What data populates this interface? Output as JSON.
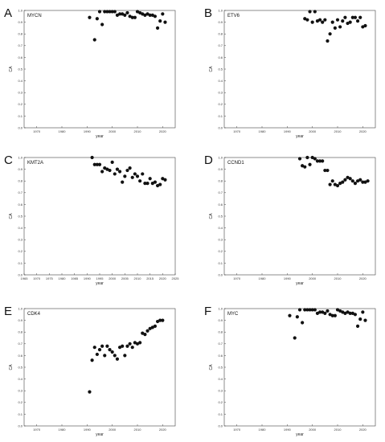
{
  "chart_data": [
    {
      "type": "scatter",
      "letter": "A",
      "title": "MYCN",
      "xlabel": "year",
      "ylabel": "CA",
      "xlim": [
        1965,
        2025
      ],
      "ylim": [
        0,
        1.0
      ],
      "xticks": [
        "1970",
        "1980",
        "1990",
        "2000",
        "2010",
        "2020"
      ],
      "yticks": [
        "0.0",
        "0.1",
        "0.2",
        "0.3",
        "0.4",
        "0.5",
        "0.6",
        "0.7",
        "0.8",
        "0.9",
        "1.0"
      ],
      "x": [
        1991,
        1993,
        1994,
        1995,
        1996,
        1997,
        1998,
        1999,
        2000,
        2001,
        2002,
        2003,
        2004,
        2005,
        2006,
        2007,
        2008,
        2009,
        2010,
        2011,
        2012,
        2013,
        2014,
        2015,
        2016,
        2017,
        2018,
        2019,
        2020,
        2021
      ],
      "y": [
        0.94,
        0.75,
        0.93,
        0.99,
        0.88,
        0.99,
        0.99,
        0.99,
        0.99,
        0.99,
        0.96,
        0.97,
        0.97,
        0.96,
        0.98,
        0.95,
        0.94,
        0.94,
        0.99,
        0.98,
        0.97,
        0.96,
        0.97,
        0.96,
        0.96,
        0.95,
        0.85,
        0.91,
        0.97,
        0.9
      ]
    },
    {
      "type": "scatter",
      "letter": "B",
      "title": "ETV6",
      "xlabel": "year",
      "ylabel": "CA",
      "xlim": [
        1965,
        2025
      ],
      "ylim": [
        0,
        1.0
      ],
      "xticks": [
        "1970",
        "1980",
        "1990",
        "2000",
        "2010",
        "2020"
      ],
      "yticks": [
        "0.0",
        "0.1",
        "0.2",
        "0.3",
        "0.4",
        "0.5",
        "0.6",
        "0.7",
        "0.8",
        "0.9",
        "1.0"
      ],
      "x": [
        1997,
        1998,
        1999,
        2000,
        2001,
        2002,
        2003,
        2004,
        2005,
        2006,
        2007,
        2008,
        2009,
        2010,
        2011,
        2012,
        2013,
        2014,
        2015,
        2016,
        2017,
        2018,
        2019,
        2020,
        2021
      ],
      "y": [
        0.93,
        0.92,
        0.99,
        0.9,
        0.99,
        0.91,
        0.92,
        0.9,
        0.92,
        0.74,
        0.8,
        0.9,
        0.85,
        0.92,
        0.86,
        0.91,
        0.94,
        0.89,
        0.9,
        0.94,
        0.94,
        0.91,
        0.94,
        0.86,
        0.87
      ]
    },
    {
      "type": "scatter",
      "letter": "C",
      "title": "KMT2A",
      "xlabel": "year",
      "ylabel": "CA",
      "xlim": [
        1965,
        2025
      ],
      "ylim": [
        0,
        1.0
      ],
      "xticks": [
        "1965",
        "1970",
        "1975",
        "1980",
        "1985",
        "1990",
        "1995",
        "2000",
        "2005",
        "2010",
        "2015",
        "2020",
        "2025"
      ],
      "yticks": [
        "0.0",
        "0.1",
        "0.2",
        "0.3",
        "0.4",
        "0.5",
        "0.6",
        "0.7",
        "0.8",
        "0.9",
        "1.0"
      ],
      "x": [
        1992,
        1993,
        1994,
        1995,
        1996,
        1997,
        1998,
        1999,
        2000,
        2001,
        2002,
        2003,
        2004,
        2005,
        2006,
        2007,
        2008,
        2009,
        2010,
        2011,
        2012,
        2013,
        2014,
        2015,
        2016,
        2017,
        2018,
        2019,
        2020,
        2021
      ],
      "y": [
        1.0,
        0.94,
        0.94,
        0.94,
        0.88,
        0.91,
        0.9,
        0.89,
        0.96,
        0.86,
        0.9,
        0.88,
        0.79,
        0.84,
        0.89,
        0.91,
        0.83,
        0.86,
        0.84,
        0.8,
        0.86,
        0.78,
        0.78,
        0.82,
        0.78,
        0.79,
        0.76,
        0.77,
        0.82,
        0.81
      ]
    },
    {
      "type": "scatter",
      "letter": "D",
      "title": "CCND1",
      "xlabel": "year",
      "ylabel": "CA",
      "xlim": [
        1965,
        2025
      ],
      "ylim": [
        0,
        1.0
      ],
      "xticks": [
        "1970",
        "1980",
        "1990",
        "2000",
        "2010",
        "2020"
      ],
      "yticks": [
        "0.0",
        "0.1",
        "0.2",
        "0.3",
        "0.4",
        "0.5",
        "0.6",
        "0.7",
        "0.8",
        "0.9",
        "1.0"
      ],
      "x": [
        1995,
        1996,
        1997,
        1998,
        1999,
        2000,
        2001,
        2002,
        2003,
        2004,
        2005,
        2006,
        2007,
        2008,
        2009,
        2010,
        2011,
        2012,
        2013,
        2014,
        2015,
        2016,
        2017,
        2018,
        2019,
        2020,
        2021,
        2022
      ],
      "y": [
        0.99,
        0.93,
        0.92,
        1.0,
        0.94,
        1.0,
        0.99,
        0.97,
        0.97,
        0.97,
        0.89,
        0.89,
        0.77,
        0.8,
        0.77,
        0.76,
        0.78,
        0.79,
        0.81,
        0.83,
        0.82,
        0.8,
        0.78,
        0.8,
        0.81,
        0.79,
        0.79,
        0.8
      ]
    },
    {
      "type": "scatter",
      "letter": "E",
      "title": "CDK4",
      "xlabel": "year",
      "ylabel": "CA",
      "xlim": [
        1965,
        2025
      ],
      "ylim": [
        0,
        1.0
      ],
      "xticks": [
        "1970",
        "1980",
        "1990",
        "2000",
        "2010",
        "2020"
      ],
      "yticks": [
        "0.0",
        "0.1",
        "0.2",
        "0.3",
        "0.4",
        "0.5",
        "0.6",
        "0.7",
        "0.8",
        "0.9",
        "1.0"
      ],
      "x": [
        1991,
        1992,
        1993,
        1994,
        1995,
        1996,
        1997,
        1998,
        1999,
        2000,
        2001,
        2002,
        2003,
        2004,
        2005,
        2006,
        2007,
        2008,
        2009,
        2010,
        2011,
        2012,
        2013,
        2014,
        2015,
        2016,
        2017,
        2018,
        2019,
        2020
      ],
      "y": [
        0.29,
        0.56,
        0.67,
        0.61,
        0.65,
        0.68,
        0.6,
        0.68,
        0.65,
        0.63,
        0.6,
        0.57,
        0.67,
        0.68,
        0.6,
        0.68,
        0.7,
        0.67,
        0.71,
        0.7,
        0.71,
        0.79,
        0.78,
        0.81,
        0.83,
        0.84,
        0.85,
        0.89,
        0.9,
        0.9
      ]
    },
    {
      "type": "scatter",
      "letter": "F",
      "title": "MYC",
      "xlabel": "year",
      "ylabel": "CA",
      "xlim": [
        1965,
        2025
      ],
      "ylim": [
        0,
        1.0
      ],
      "xticks": [
        "1970",
        "1980",
        "1990",
        "2000",
        "2010",
        "2020"
      ],
      "yticks": [
        "0.0",
        "0.1",
        "0.2",
        "0.3",
        "0.4",
        "0.5",
        "0.6",
        "0.7",
        "0.8",
        "0.9",
        "1.0"
      ],
      "x": [
        1991,
        1993,
        1994,
        1995,
        1996,
        1997,
        1998,
        1999,
        2000,
        2001,
        2002,
        2003,
        2004,
        2005,
        2006,
        2007,
        2008,
        2009,
        2010,
        2011,
        2012,
        2013,
        2014,
        2015,
        2016,
        2017,
        2018,
        2019,
        2020,
        2021
      ],
      "y": [
        0.94,
        0.75,
        0.93,
        0.99,
        0.88,
        0.99,
        0.99,
        0.99,
        0.99,
        0.99,
        0.96,
        0.97,
        0.97,
        0.96,
        0.98,
        0.95,
        0.94,
        0.94,
        0.99,
        0.98,
        0.97,
        0.96,
        0.97,
        0.96,
        0.96,
        0.95,
        0.85,
        0.91,
        0.97,
        0.9
      ]
    }
  ]
}
